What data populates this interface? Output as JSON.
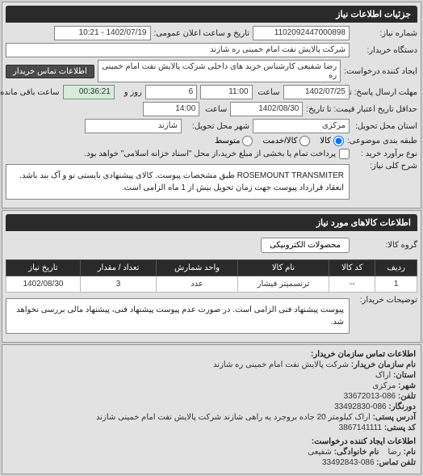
{
  "sections": {
    "need_details": "جزئیات اطلاعات نیاز"
  },
  "top": {
    "req_no_label": "شماره نیاز:",
    "req_no": "1102092447000898",
    "pub_date_label": "تاریخ و ساعت اعلان عمومی:",
    "pub_date": "1402/07/19 - 10:21",
    "buyer_label": "دستگاه خریدار:",
    "buyer": "شرکت پالایش نفت امام خمینی ره شازند",
    "creator_label": "ایجاد کننده درخواست:",
    "creator": "رضا شفیعی کارشناس خرید های داخلی شرکت پالایش نفت امام خمینی ره",
    "buyer_contact_btn": "اطلاعات تماس خریدار",
    "deadline_label": "مهلت ارسال پاسخ: تا",
    "deadline_date": "1402/07/25",
    "deadline_time_label": "ساعت",
    "deadline_time": "11:00",
    "days_label": "روز و",
    "days": "6",
    "remain_label": "ساعت باقی مانده",
    "remain": "00:36:21",
    "valid_label": "حداقل تاریخ اعتبار قیمت: تا تاریخ:",
    "valid_date": "1402/08/30",
    "valid_time_label": "ساعت",
    "valid_time": "14:00",
    "province_label": "استان محل تحویل:",
    "province": "مرکزی",
    "city_label": "شهر محل تحویل:",
    "city": "شازند",
    "cat_label": "طبقه بندی موضوعی:",
    "cat_all": "کالا",
    "cat_goods": "کالا/خدمت",
    "cat_med": "متوسط",
    "budget_label": "نوع برآورد خرید :",
    "budget_note": "پرداخت تمام یا بخشی از مبلغ خرید،از محل \"اسناد خزانه اسلامی\" خواهد بود."
  },
  "summary": {
    "label": "شرح کلی نیاز:",
    "text": "ROSEMOUNT TRANSMITER طبق مشخصات پیوست. کالای پیشنهادی بایستی نو و آک بند باشد. انعقاد قرارداد پیوست جهت زمان تحویل بیش از 1 ماه الزامی است."
  },
  "items": {
    "header": "اطلاعات کالاهای مورد نیاز",
    "group_label": "گروه کالا:",
    "group_chip": "محصولات الکترونیکی",
    "cols": [
      "ردیف",
      "کد کالا",
      "نام کالا",
      "واحد شمارش",
      "تعداد / مقدار",
      "تاریخ نیاز"
    ],
    "rows": [
      [
        "1",
        "--",
        "ترنسمیتر فیشار",
        "عدد",
        "3",
        "1402/08/30"
      ]
    ]
  },
  "buyer_notes": {
    "label": "توضیحات خریدار:",
    "text": "پیوست پیشنهاد فنی الزامی است. در صورت عدم پیوست پیشنهاد فنی، پیشنهاد مالی بررسی نخواهد شد."
  },
  "contact_org": {
    "header": "اطلاعات تماس سازمان خریدار:",
    "org_name_label": "نام سازمان خریدار:",
    "org_name": "شرکت پالایش نفت امام خمینی ره شازند",
    "province_label": "استان:",
    "province": "اراک",
    "city_label": "شهر:",
    "city": "مرکزی",
    "phone_label": "تلفن:",
    "phone": "086-33672013",
    "fax_label": "دورنگار:",
    "fax": "086-33492830",
    "address_label": "آدرس پستی:",
    "address": "اراک کیلومتر 20 جاده بروجرد یه راهی شازند شرکت پالایش نفت امام خمینی شازند",
    "postal_label": "کد پستی:",
    "postal": "3867141111"
  },
  "contact_creator": {
    "header": "اطلاعات ایجاد کننده درخواست:",
    "name_label": "نام:",
    "name": "رضا",
    "lname_label": "نام خانوادگی:",
    "lname": "شفیعی",
    "phone_label": "تلفن تماس:",
    "phone": "086-33492843"
  }
}
